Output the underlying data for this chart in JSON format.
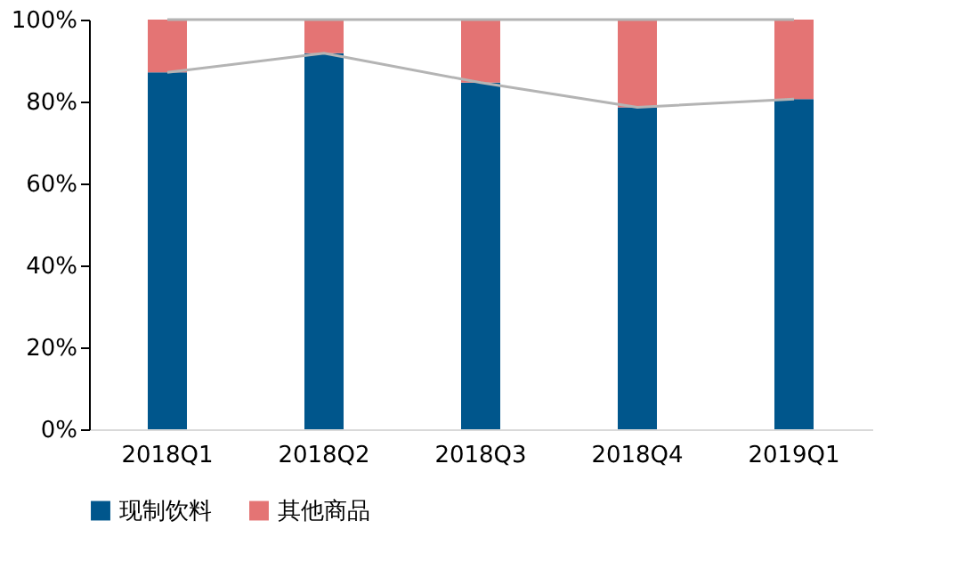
{
  "chart_data": {
    "type": "bar",
    "stacked": true,
    "categories": [
      "2018Q1",
      "2018Q2",
      "2018Q3",
      "2018Q4",
      "2019Q1"
    ],
    "series": [
      {
        "name": "现制饮料",
        "color": "#00568c",
        "values": [
          87.1,
          91.8,
          84.6,
          78.6,
          80.6
        ]
      },
      {
        "name": "其他商品",
        "color": "#e47474",
        "values": [
          12.9,
          8.2,
          15.4,
          21.4,
          19.4
        ]
      },
      {
        "type": "line",
        "color": "#b4b4b4",
        "values": [
          87.1,
          91.8,
          84.6,
          78.6,
          80.6
        ]
      },
      {
        "type": "line",
        "color": "#b4b4b4",
        "values": [
          100,
          100,
          100,
          100,
          100
        ]
      }
    ],
    "ylim": [
      0,
      100
    ],
    "yticks": [
      {
        "value": 0,
        "label": "0%"
      },
      {
        "value": 20,
        "label": "20%"
      },
      {
        "value": 40,
        "label": "40%"
      },
      {
        "value": 60,
        "label": "60%"
      },
      {
        "value": 80,
        "label": "80%"
      },
      {
        "value": 100,
        "label": "100%"
      }
    ],
    "grid": false,
    "legend": "bottom"
  }
}
